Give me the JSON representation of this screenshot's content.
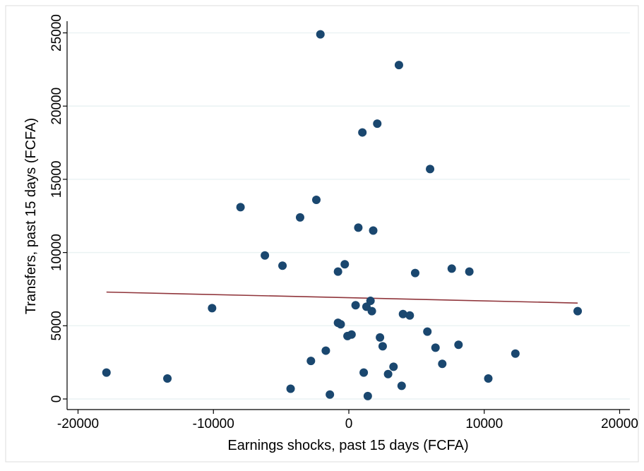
{
  "chart_data": {
    "type": "scatter",
    "title": "",
    "xlabel": "Earnings shocks, past 15 days (FCFA)",
    "ylabel": "Transfers, past 15 days (FCFA)",
    "xlim": [
      -21000,
      21000
    ],
    "ylim": [
      -800,
      26500
    ],
    "xticks": [
      -20000,
      -10000,
      0,
      10000,
      20000
    ],
    "yticks": [
      0,
      5000,
      10000,
      15000,
      20000,
      25000
    ],
    "xtick_labels": [
      "-20000",
      "-10000",
      "0",
      "10000",
      "20000"
    ],
    "ytick_labels": [
      "0",
      "5000",
      "10000",
      "15000",
      "20000",
      "25000"
    ],
    "grid": "horizontal",
    "legend": "none",
    "colors": {
      "points": "#1a476f",
      "fit_line": "#90353b",
      "grid": "#eaf2f3",
      "frame": "#dcdcdc"
    },
    "series": [
      {
        "kind": "points",
        "x": [
          -2100,
          3700,
          2100,
          1000,
          6000,
          -8000,
          -2400,
          -3600,
          700,
          1800,
          -6200,
          -300,
          -4900,
          -800,
          4900,
          7600,
          8900,
          16900,
          -10100,
          1600,
          500,
          1300,
          1700,
          4000,
          4500,
          -800,
          -600,
          5800,
          200,
          -100,
          2300,
          6400,
          2500,
          8100,
          -1700,
          12300,
          -2800,
          3300,
          6900,
          1100,
          2900,
          -17900,
          -13400,
          3900,
          10300,
          -4300,
          -1400,
          1400
        ],
        "y": [
          24900,
          22800,
          18800,
          18200,
          15700,
          13100,
          13600,
          12400,
          11700,
          11500,
          9800,
          9200,
          9100,
          8700,
          8600,
          8900,
          8700,
          6000,
          6200,
          6700,
          6400,
          6300,
          6000,
          5800,
          5700,
          5200,
          5100,
          4600,
          4400,
          4300,
          4200,
          3500,
          3600,
          3700,
          3300,
          3100,
          2600,
          2200,
          2400,
          1800,
          1700,
          1800,
          1400,
          900,
          1400,
          700,
          300,
          200
        ]
      },
      {
        "kind": "fit-line",
        "x": [
          -17900,
          16900
        ],
        "y": [
          7300,
          6550
        ]
      }
    ]
  }
}
